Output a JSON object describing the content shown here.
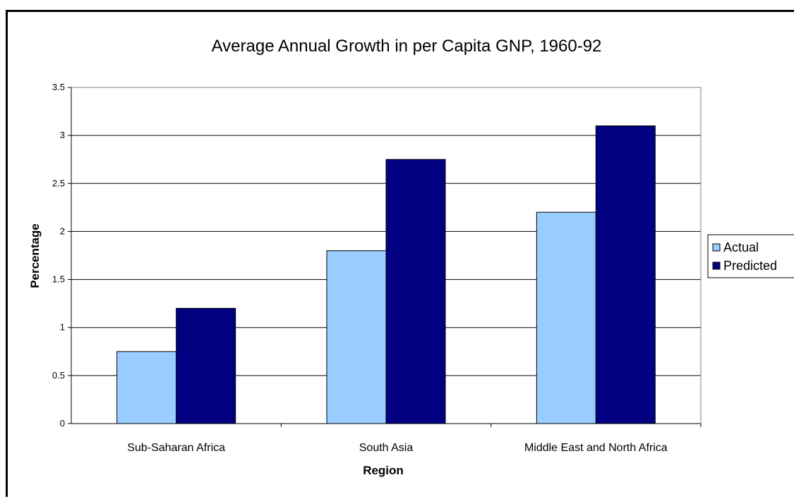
{
  "chart_data": {
    "type": "bar",
    "title": "Average Annual Growth in per Capita GNP, 1960-92",
    "xlabel": "Region",
    "ylabel": "Percentage",
    "categories": [
      "Sub-Saharan Africa",
      "South Asia",
      "Middle East and North Africa"
    ],
    "series": [
      {
        "name": "Actual",
        "values": [
          0.75,
          1.8,
          2.2
        ],
        "color": "#99CCFF"
      },
      {
        "name": "Predicted",
        "values": [
          1.2,
          2.75,
          3.1
        ],
        "color": "#000080"
      }
    ],
    "ylim": [
      0,
      3.5
    ],
    "yticks": [
      "0",
      "0.5",
      "1",
      "1.5",
      "2",
      "2.5",
      "3",
      "3.5"
    ],
    "grid": true,
    "legend_position": "right"
  }
}
